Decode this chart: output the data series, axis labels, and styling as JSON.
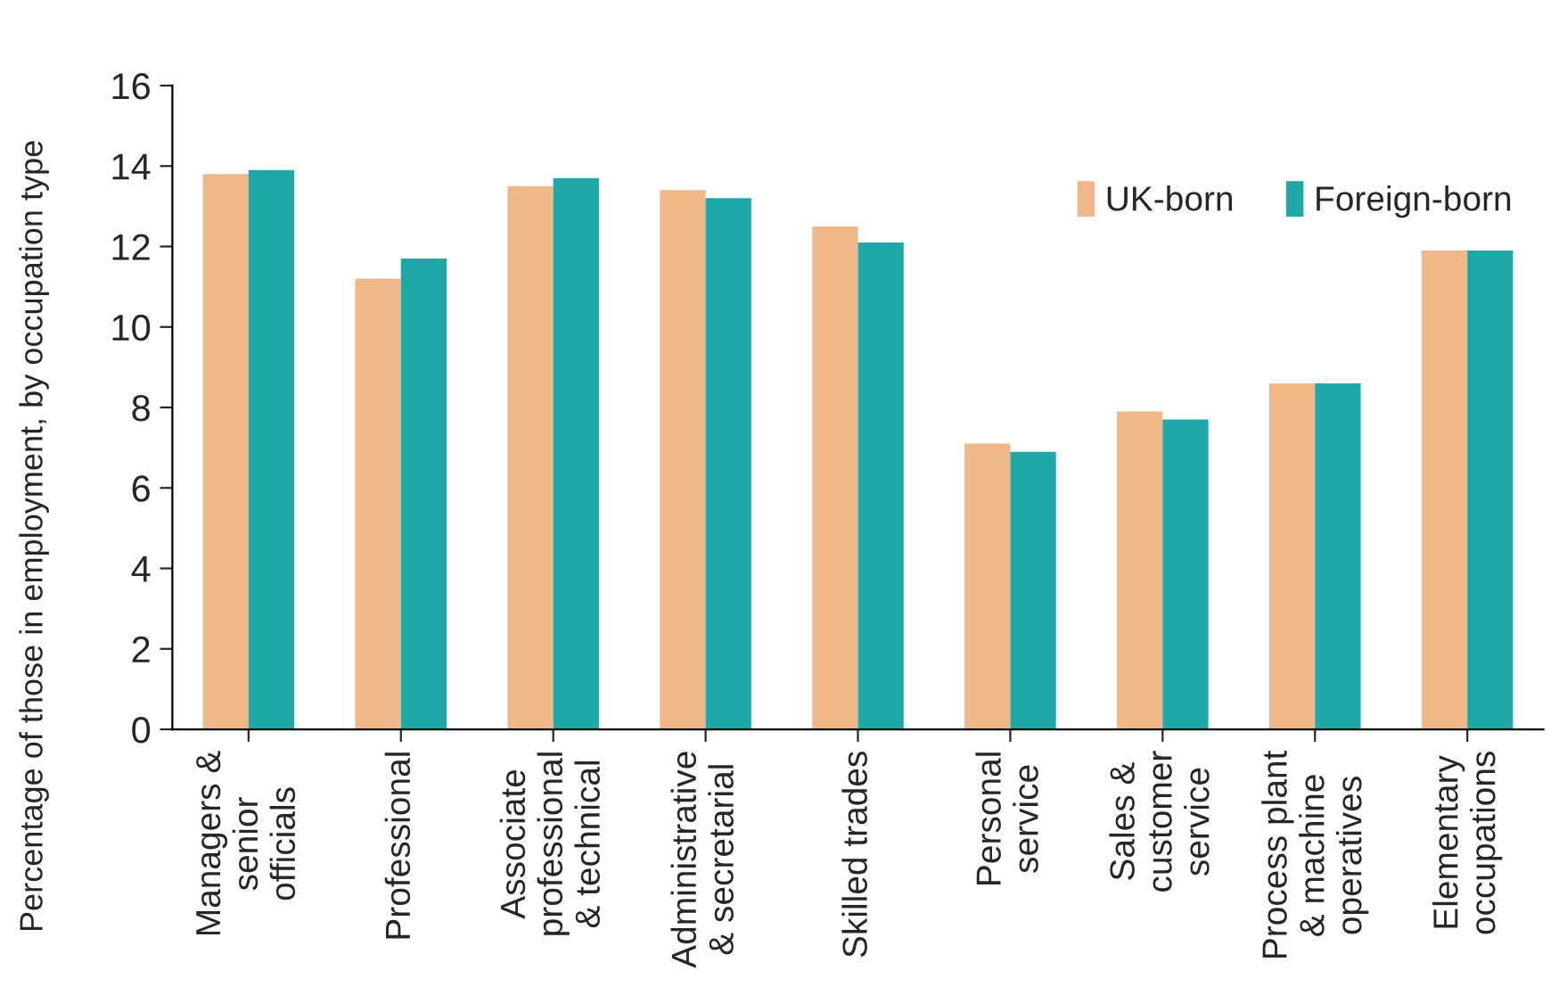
{
  "chart_data": {
    "type": "bar",
    "ylabel": "Percentage of those in employment, by occupation type",
    "categories": [
      "Managers &\nsenior\nofficials",
      "Professional",
      "Associate\nprofessional\n& technical",
      "Administrative\n& secretarial",
      "Skilled trades",
      "Personal\nservice",
      "Sales &\ncustomer\nservice",
      "Process plant\n& machine\noperatives",
      "Elementary\noccupations"
    ],
    "series": [
      {
        "name": "UK-born",
        "color": "#f0b888",
        "values": [
          13.8,
          11.2,
          13.5,
          13.4,
          12.5,
          7.1,
          7.9,
          8.6,
          11.9
        ]
      },
      {
        "name": "Foreign-born",
        "color": "#1fa8a8",
        "values": [
          13.9,
          11.7,
          13.7,
          13.2,
          12.1,
          6.9,
          7.7,
          8.6,
          11.9
        ]
      }
    ],
    "ylim": [
      0,
      16
    ],
    "yticks": [
      0,
      2,
      4,
      6,
      8,
      10,
      12,
      14,
      16
    ],
    "grid": false,
    "legend": "top right"
  }
}
